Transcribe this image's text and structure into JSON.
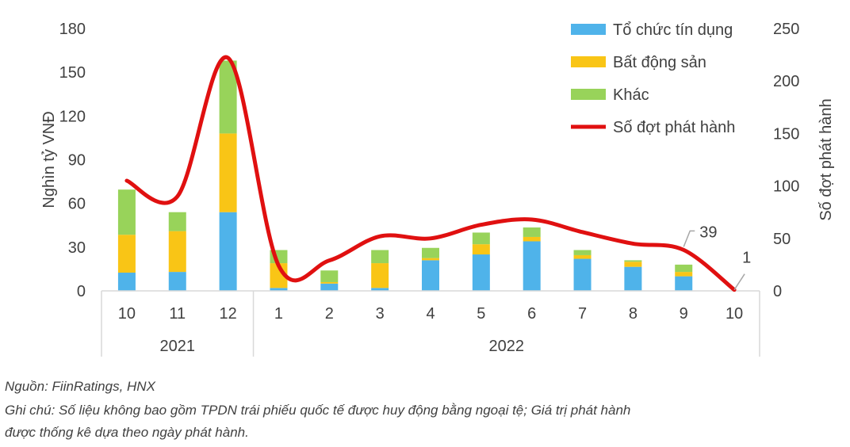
{
  "chart_data": {
    "type": "bar",
    "stacked": true,
    "categories": [
      "10",
      "11",
      "12",
      "1",
      "2",
      "3",
      "4",
      "5",
      "6",
      "7",
      "8",
      "9",
      "10"
    ],
    "groups": [
      {
        "label": "2021",
        "span": 3
      },
      {
        "label": "2022",
        "span": 10
      }
    ],
    "series": [
      {
        "name": "Tổ chức tín dụng",
        "color": "#4fb3ea",
        "values": [
          12.5,
          13,
          54,
          2,
          5,
          2,
          21,
          25,
          34,
          22,
          16.5,
          10,
          0
        ]
      },
      {
        "name": "Bất động sản",
        "color": "#f9c516",
        "values": [
          26,
          28,
          54,
          17,
          1,
          17,
          1.5,
          7,
          3,
          2.5,
          3.5,
          3,
          0
        ]
      },
      {
        "name": "Khác",
        "color": "#98d35a",
        "values": [
          31,
          13,
          50,
          9,
          8,
          9,
          7,
          8,
          6.5,
          3.5,
          1,
          5,
          0
        ]
      }
    ],
    "line_series": {
      "name": "Số đợt phát hành",
      "color": "#e01010",
      "axis": "right",
      "values": [
        105,
        90,
        222,
        24,
        29,
        52,
        50,
        63,
        68,
        56,
        45,
        39,
        1
      ]
    },
    "data_labels": [
      {
        "index": 11,
        "text": "39"
      },
      {
        "index": 12,
        "text": "1"
      }
    ],
    "ylabel": "Nghìn tỷ VNĐ",
    "ylabel_right": "Số đợt phát hành",
    "ylim": [
      0,
      180
    ],
    "yticks": [
      "0",
      "30",
      "60",
      "90",
      "120",
      "150",
      "180"
    ],
    "ylim_right": [
      0,
      250
    ],
    "yticks_right": [
      "0",
      "50",
      "100",
      "150",
      "200",
      "250"
    ],
    "grid": false,
    "legend": "top-right"
  },
  "notes": {
    "source": "Nguồn: FiinRatings, HNX",
    "note": "Ghi chú: Số liệu không bao gồm TPDN trái phiếu quốc tế được huy động bằng ngoại tệ; Giá trị phát hành",
    "note2": "được thống kê dựa theo ngày phát hành."
  }
}
